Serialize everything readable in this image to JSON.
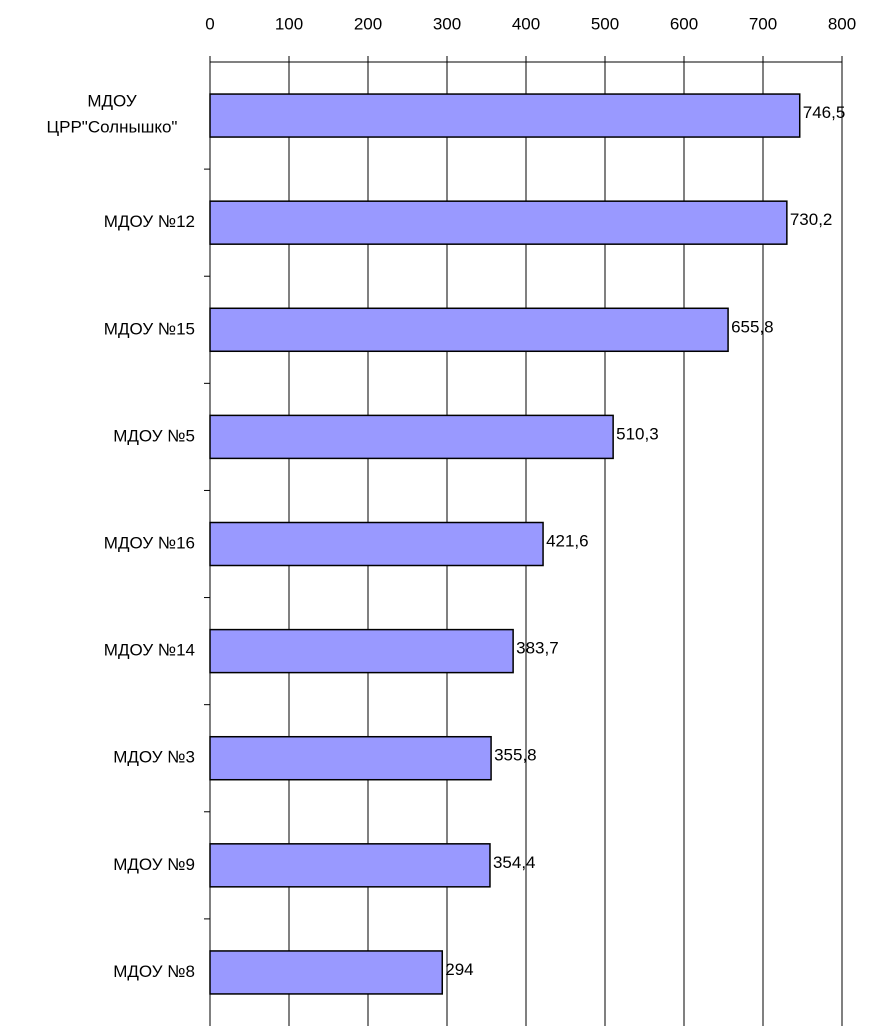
{
  "chart_data": {
    "type": "bar",
    "orientation": "horizontal",
    "categories": [
      "МДОУ\nЦРР\"Солнышко\"",
      "МДОУ №12",
      "МДОУ №15",
      "МДОУ №5",
      "МДОУ №16",
      "МДОУ №14",
      "МДОУ №3",
      "МДОУ №9",
      "МДОУ №8"
    ],
    "values": [
      746.5,
      730.2,
      655.8,
      510.3,
      421.6,
      383.7,
      355.8,
      354.4,
      294
    ],
    "value_labels": [
      "746,5",
      "730,2",
      "655,8",
      "510,3",
      "421,6",
      "383,7",
      "355,8",
      "354,4",
      "294"
    ],
    "color": "#9999ff",
    "xlim": [
      0,
      800
    ],
    "xticks": [
      0,
      100,
      200,
      300,
      400,
      500,
      600,
      700,
      800
    ],
    "grid": true
  }
}
